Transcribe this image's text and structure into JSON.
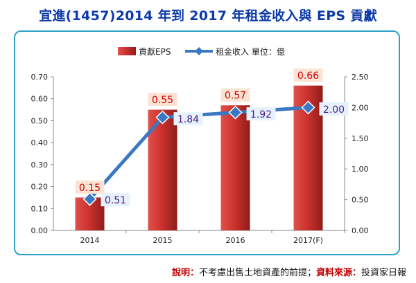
{
  "title": "宜進(1457)2014 年到 2017 年租金收入與 EPS 貢獻",
  "note": {
    "label1": "說明：",
    "text1": "不考慮出售土地資產的前提；",
    "label2": "資料來源：",
    "text2": "投資家日報"
  },
  "colors": {
    "bar": "#c9302c",
    "bar_dark": "#8e1d1b",
    "line": "#3a78c2",
    "bar_label": "#d00000",
    "line_label": "#4b1b8a",
    "title": "#0b3aa8"
  },
  "chart_data": {
    "type": "bar",
    "categories": [
      "2014",
      "2015",
      "2016",
      "2017(F)"
    ],
    "series": [
      {
        "name": "貢獻EPS",
        "type": "bar",
        "axis": "left",
        "values": [
          0.15,
          0.55,
          0.57,
          0.66
        ],
        "labels": [
          "0.15",
          "0.55",
          "0.57",
          "0.66"
        ]
      },
      {
        "name": "租金收入 單位：億",
        "type": "line",
        "axis": "right",
        "values": [
          0.51,
          1.84,
          1.92,
          2.0
        ],
        "labels": [
          "0.51",
          "1.84",
          "1.92",
          "2.00"
        ]
      }
    ],
    "y_left": {
      "min": 0,
      "max": 0.7,
      "ticks": [
        "0.00",
        "0.10",
        "0.20",
        "0.30",
        "0.40",
        "0.50",
        "0.60",
        "0.70"
      ]
    },
    "y_right": {
      "min": 0,
      "max": 2.5,
      "ticks": [
        "0.00",
        "0.50",
        "1.00",
        "1.50",
        "2.00",
        "2.50"
      ]
    },
    "legend_position": "top",
    "grid": false
  }
}
